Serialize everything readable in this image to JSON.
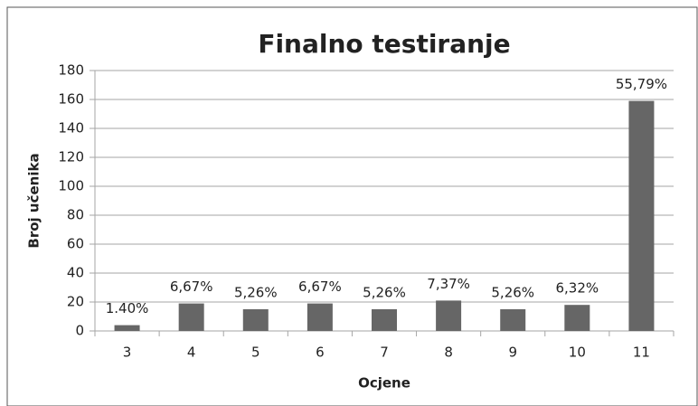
{
  "chart_data": {
    "type": "bar",
    "title": "Finalno testiranje",
    "x_label": "Ocjene",
    "y_label": "Broj učenika",
    "categories": [
      "3",
      "4",
      "5",
      "6",
      "7",
      "8",
      "9",
      "10",
      "11"
    ],
    "values": [
      4,
      19,
      15,
      19,
      15,
      21,
      15,
      18,
      159
    ],
    "value_labels": [
      "1.40%",
      "6,67%",
      "5,26%",
      "6,67%",
      "5,26%",
      "7,37%",
      "5,26%",
      "6,32%",
      "55,79%"
    ],
    "color": "#666666",
    "ylim": [
      0,
      180
    ],
    "yticks": [
      0,
      20,
      40,
      60,
      80,
      100,
      120,
      140,
      160,
      180
    ],
    "grid": true
  }
}
